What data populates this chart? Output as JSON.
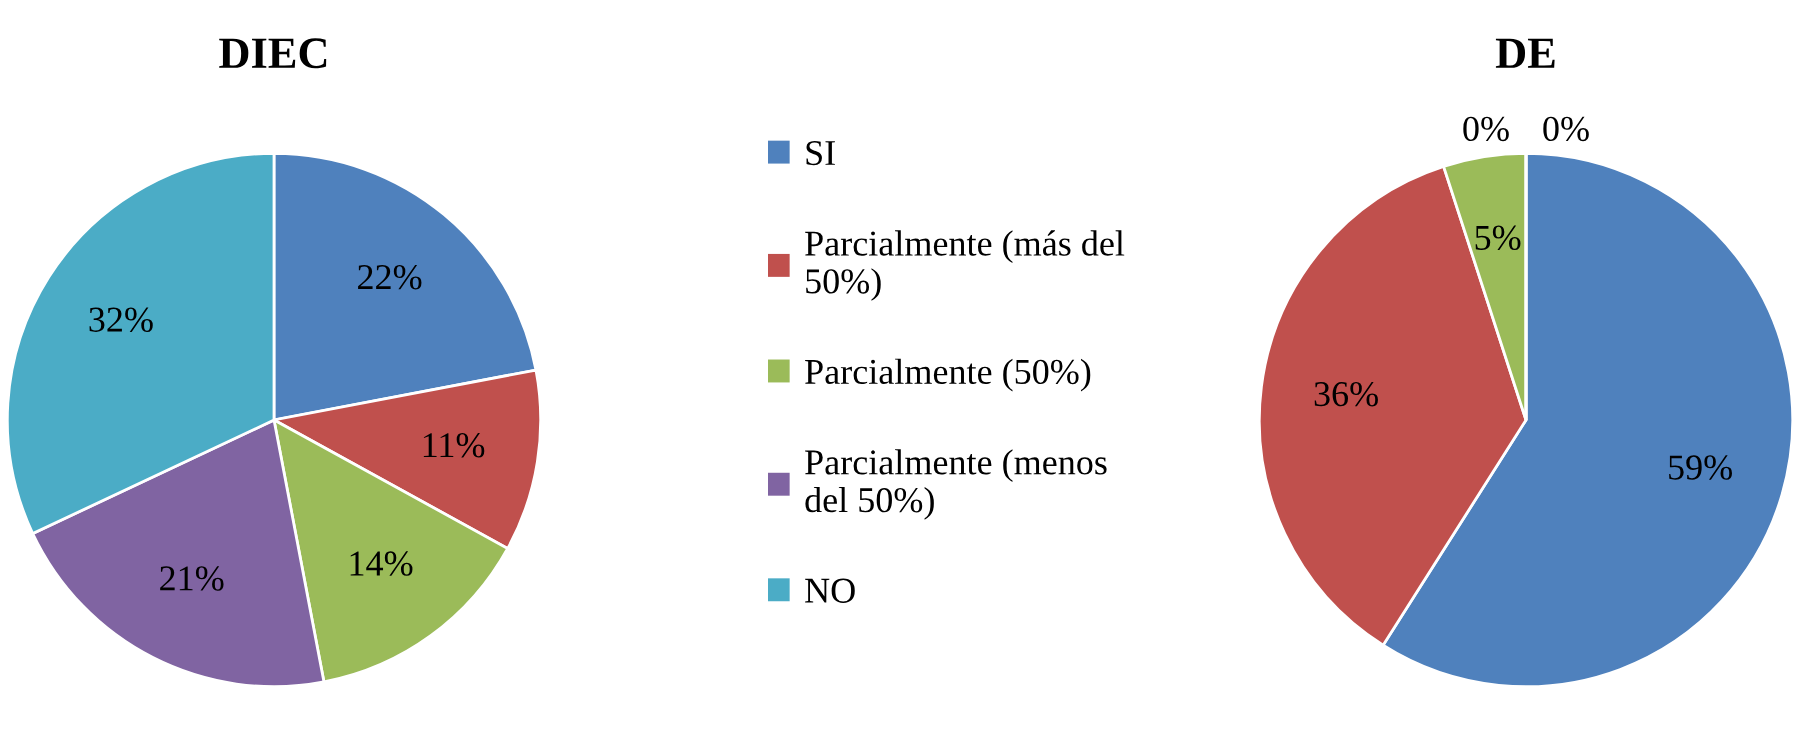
{
  "chart_data": [
    {
      "type": "pie",
      "title": "DIEC",
      "categories": [
        "SI",
        "Parcialmente (más del 50%)",
        "Parcialmente (50%)",
        "Parcialmente (menos del 50%)",
        "NO"
      ],
      "values": [
        22,
        11,
        14,
        21,
        32
      ],
      "value_labels": [
        "22%",
        "11%",
        "14%",
        "21%",
        "32%"
      ],
      "colors": [
        "#4f81bd",
        "#c0504d",
        "#9bbb59",
        "#8064a2",
        "#4bacc6"
      ],
      "legend": "right"
    },
    {
      "type": "pie",
      "title": "DE",
      "values": [
        59,
        36,
        5,
        0,
        0
      ],
      "value_labels": [
        "59%",
        "36%",
        "5%",
        "0%",
        "0%"
      ],
      "colors": [
        "#4f81bd",
        "#c0504d",
        "#9bbb59",
        "#8064a2",
        "#4bacc6"
      ]
    }
  ]
}
